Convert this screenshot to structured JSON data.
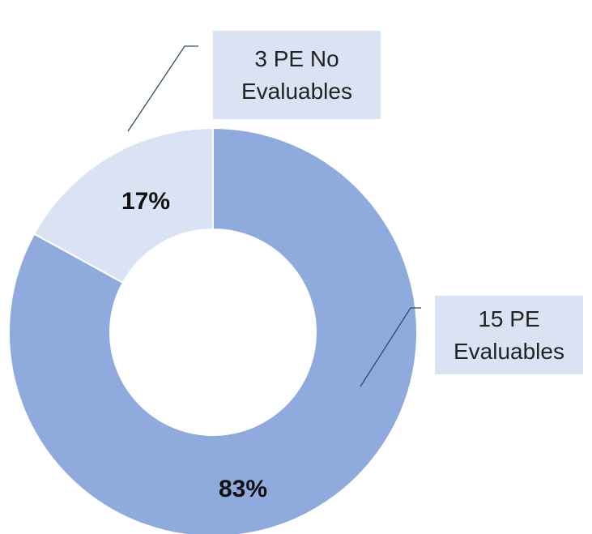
{
  "chart_data": {
    "type": "donut",
    "categories": [
      "15 PE Evaluables",
      "3 PE No Evaluables"
    ],
    "values": [
      83,
      17
    ],
    "value_labels": [
      "83%",
      "17%"
    ],
    "colors": [
      "#8faadc",
      "#dae3f3"
    ]
  }
}
